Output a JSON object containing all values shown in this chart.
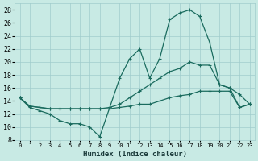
{
  "xlabel": "Humidex (Indice chaleur)",
  "bg_color": "#c8eae4",
  "grid_color": "#a0cccc",
  "line_color": "#1a6b5e",
  "xlim": [
    -0.5,
    23.5
  ],
  "ylim": [
    8,
    29
  ],
  "yticks": [
    8,
    10,
    12,
    14,
    16,
    18,
    20,
    22,
    24,
    26,
    28
  ],
  "xticks": [
    0,
    1,
    2,
    3,
    4,
    5,
    6,
    7,
    8,
    9,
    10,
    11,
    12,
    13,
    14,
    15,
    16,
    17,
    18,
    19,
    20,
    21,
    22,
    23
  ],
  "curve1_x": [
    0,
    1,
    2,
    3,
    4,
    5,
    6,
    7,
    8,
    9,
    10,
    11,
    12,
    13,
    14,
    15,
    16,
    17,
    18,
    19,
    20,
    21,
    22,
    23
  ],
  "curve1_y": [
    14.5,
    13.0,
    12.5,
    12.0,
    11.0,
    10.5,
    10.5,
    10.0,
    8.5,
    13.0,
    17.5,
    20.5,
    22.0,
    17.5,
    20.5,
    26.5,
    27.5,
    28.0,
    27.0,
    23.0,
    16.5,
    16.0,
    15.0,
    13.5
  ],
  "curve2_x": [
    0,
    1,
    2,
    3,
    4,
    5,
    6,
    7,
    8,
    9,
    10,
    11,
    12,
    13,
    14,
    15,
    16,
    17,
    18,
    19,
    20,
    21,
    22,
    23
  ],
  "curve2_y": [
    14.5,
    13.2,
    13.0,
    12.8,
    12.8,
    12.8,
    12.8,
    12.8,
    12.8,
    13.0,
    13.5,
    14.5,
    15.5,
    16.5,
    17.5,
    18.5,
    19.0,
    20.0,
    19.5,
    19.5,
    16.5,
    16.0,
    13.0,
    13.5
  ],
  "curve3_x": [
    0,
    1,
    2,
    3,
    4,
    5,
    6,
    7,
    8,
    9,
    10,
    11,
    12,
    13,
    14,
    15,
    16,
    17,
    18,
    19,
    20,
    21,
    22,
    23
  ],
  "curve3_y": [
    14.5,
    13.2,
    13.0,
    12.8,
    12.8,
    12.8,
    12.8,
    12.8,
    12.8,
    12.8,
    13.0,
    13.2,
    13.5,
    13.5,
    14.0,
    14.5,
    14.8,
    15.0,
    15.5,
    15.5,
    15.5,
    15.5,
    13.0,
    13.5
  ]
}
